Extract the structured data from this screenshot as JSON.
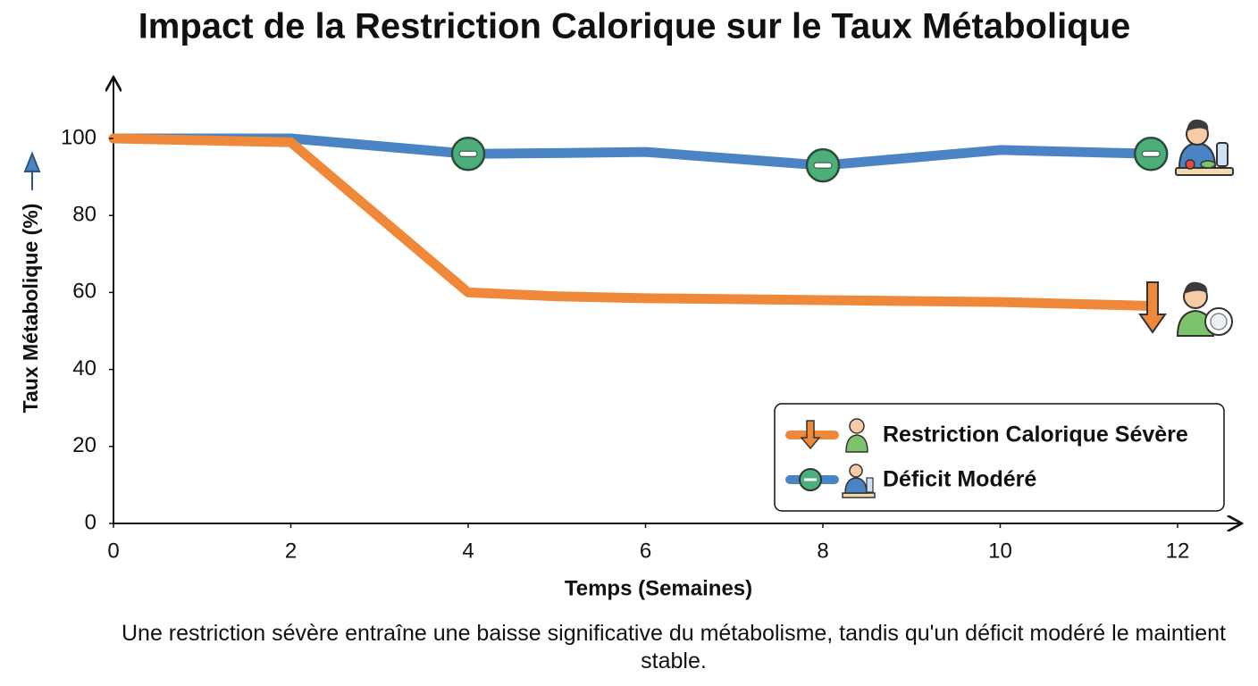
{
  "chart_data": {
    "type": "line",
    "title": "Impact de la Restriction Calorique sur le Taux Métabolique",
    "x_label": "Temps (Semaines)",
    "y_label": "Taux Métabolique (%)",
    "caption": "Une restriction sévère entraîne une baisse significative du métabolisme, tandis qu'un déficit modéré le maintient stable.",
    "x": [
      0,
      2,
      4,
      5,
      6,
      8,
      10,
      11.7
    ],
    "series": [
      {
        "name": "Restriction Calorique Sévère",
        "color": "#f0883a",
        "values": [
          100,
          99,
          60,
          59,
          58.5,
          58,
          57.5,
          56.5
        ]
      },
      {
        "name": "Déficit Modéré",
        "color": "#4a84c4",
        "values": [
          100,
          100,
          96,
          96.2,
          96.5,
          93,
          97,
          96
        ]
      }
    ],
    "xlim": [
      0,
      12.7
    ],
    "xticks": [
      0,
      2,
      4,
      6,
      8,
      10,
      12
    ],
    "ylim": [
      0,
      115
    ],
    "yticks": [
      0,
      20,
      40,
      60,
      80,
      100
    ],
    "grid": false
  }
}
